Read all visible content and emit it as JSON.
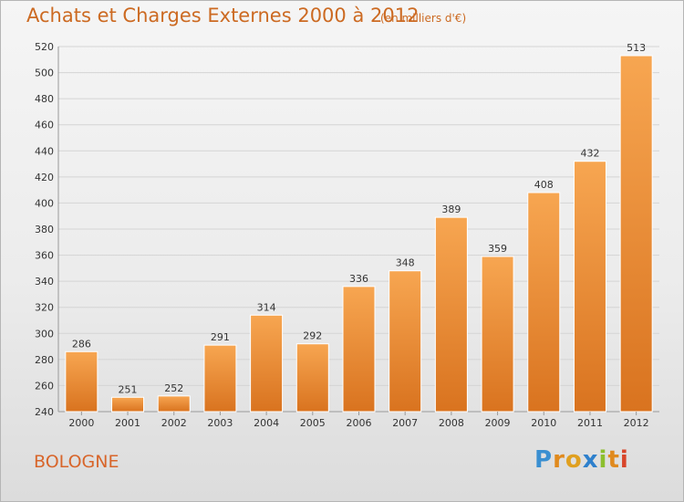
{
  "header": {
    "title": "Achats et Charges Externes 2000 à 2012",
    "subtitle": "(en milliers d'€)"
  },
  "footer": {
    "place": "BOLOGNE",
    "logo_letters": [
      "P",
      "r",
      "o",
      "x",
      "i",
      "t",
      "i"
    ],
    "logo_colors": [
      "#3a8fd1",
      "#e08a1e",
      "#e0a020",
      "#2e80cc",
      "#8cbf2e",
      "#e08a1e",
      "#d8452a"
    ]
  },
  "colors": {
    "bar_light": "#f7a651",
    "bar_dark": "#d9731f",
    "accent": "#cc6a22"
  },
  "chart_data": {
    "type": "bar",
    "title": "Achats et Charges Externes 2000 à 2012",
    "subtitle": "(en milliers d'€)",
    "categories": [
      "2000",
      "2001",
      "2002",
      "2003",
      "2004",
      "2005",
      "2006",
      "2007",
      "2008",
      "2009",
      "2010",
      "2011",
      "2012"
    ],
    "values": [
      286,
      251,
      252,
      291,
      314,
      292,
      336,
      348,
      389,
      359,
      408,
      432,
      513
    ],
    "ylim": [
      240,
      520
    ],
    "yticks": [
      240,
      260,
      280,
      300,
      320,
      340,
      360,
      380,
      400,
      420,
      440,
      460,
      480,
      500,
      520
    ],
    "grid": true,
    "data_labels": true
  }
}
